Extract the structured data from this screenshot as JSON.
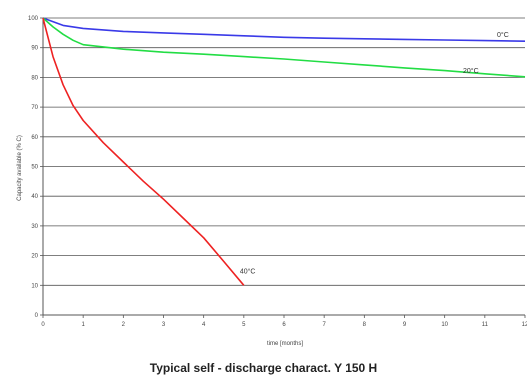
{
  "chart_data": {
    "type": "line",
    "title": "Typical self - discharge charact. Y 150 H",
    "xlabel": "time [months]",
    "ylabel": "Capacity available (% C)",
    "xlim": [
      0,
      12
    ],
    "ylim": [
      0,
      100
    ],
    "x_ticks": [
      0,
      1,
      2,
      3,
      4,
      5,
      6,
      7,
      8,
      9,
      10,
      11,
      12
    ],
    "x_tick_labels": [
      "0",
      "1",
      "2",
      "3",
      "4",
      "5",
      "6",
      "7",
      "8",
      "9",
      "10",
      "11",
      "12"
    ],
    "y_ticks": [
      0,
      10,
      20,
      30,
      40,
      50,
      60,
      70,
      80,
      90,
      100
    ],
    "y_tick_labels": [
      "0",
      "10",
      "20",
      "30",
      "40",
      "50",
      "60",
      "70",
      "80",
      "90",
      "100"
    ],
    "grid": "horizontal",
    "series": [
      {
        "name": "0°C",
        "color": "#3a3ae8",
        "x": [
          0,
          0.5,
          1,
          2,
          3,
          4,
          5,
          6,
          7,
          8,
          9,
          10,
          11,
          12
        ],
        "y": [
          100,
          97.5,
          96.5,
          95.5,
          95,
          94.5,
          94,
          93.5,
          93.2,
          93,
          92.8,
          92.6,
          92.4,
          92.2
        ]
      },
      {
        "name": "20°C",
        "color": "#22dd44",
        "x": [
          0,
          0.25,
          0.5,
          0.75,
          1,
          2,
          3,
          4,
          5,
          6,
          7,
          8,
          9,
          10,
          11,
          12
        ],
        "y": [
          100,
          97,
          94.5,
          92.5,
          91,
          89.5,
          88.5,
          87.8,
          87,
          86.2,
          85.2,
          84.2,
          83.2,
          82.3,
          81.2,
          80.2
        ]
      },
      {
        "name": "40°C",
        "color": "#ee2222",
        "x": [
          0,
          0.25,
          0.5,
          0.75,
          1,
          1.5,
          2,
          2.5,
          3,
          3.5,
          4,
          4.5,
          5
        ],
        "y": [
          100,
          87,
          77.5,
          70.5,
          65.5,
          58,
          51.5,
          45,
          39,
          32.5,
          26,
          18,
          10
        ]
      }
    ]
  }
}
